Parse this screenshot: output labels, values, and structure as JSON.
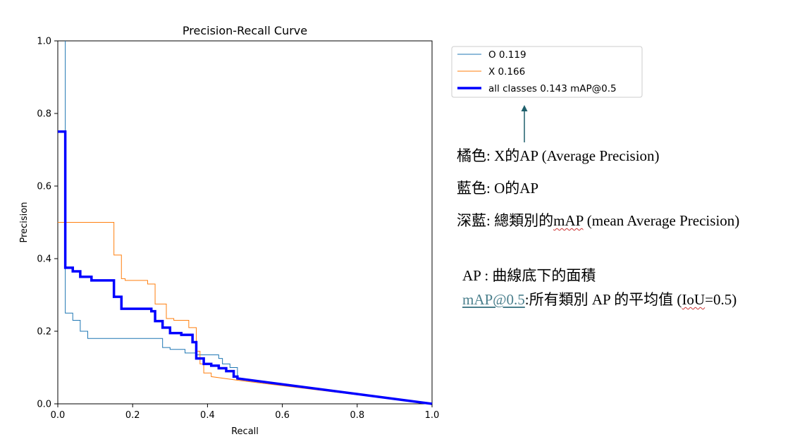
{
  "chart_data": {
    "type": "line",
    "title": "Precision-Recall Curve",
    "xlabel": "Recall",
    "ylabel": "Precision",
    "xlim": [
      0,
      1
    ],
    "ylim": [
      0,
      1
    ],
    "xticks": [
      "0.0",
      "0.2",
      "0.4",
      "0.6",
      "0.8",
      "1.0"
    ],
    "yticks": [
      "0.0",
      "0.2",
      "0.4",
      "0.6",
      "0.8",
      "1.0"
    ],
    "grid": false,
    "legend_position": "outside-right",
    "series": [
      {
        "name": "O 0.119",
        "color": "#1f77b4",
        "width": 1,
        "points": [
          [
            0.02,
            1.0
          ],
          [
            0.02,
            0.25
          ],
          [
            0.04,
            0.25
          ],
          [
            0.04,
            0.23
          ],
          [
            0.06,
            0.23
          ],
          [
            0.06,
            0.2
          ],
          [
            0.08,
            0.2
          ],
          [
            0.08,
            0.18
          ],
          [
            0.28,
            0.18
          ],
          [
            0.28,
            0.155
          ],
          [
            0.3,
            0.155
          ],
          [
            0.3,
            0.15
          ],
          [
            0.34,
            0.15
          ],
          [
            0.34,
            0.14
          ],
          [
            0.37,
            0.14
          ],
          [
            0.37,
            0.135
          ],
          [
            0.43,
            0.135
          ],
          [
            0.43,
            0.125
          ],
          [
            0.44,
            0.125
          ],
          [
            0.44,
            0.11
          ],
          [
            0.46,
            0.11
          ],
          [
            0.46,
            0.1
          ],
          [
            0.48,
            0.1
          ],
          [
            0.48,
            0.07
          ],
          [
            1.0,
            0.0
          ]
        ]
      },
      {
        "name": "X 0.166",
        "color": "#ff7f0e",
        "width": 1,
        "points": [
          [
            0.0,
            0.5
          ],
          [
            0.15,
            0.5
          ],
          [
            0.15,
            0.41
          ],
          [
            0.17,
            0.41
          ],
          [
            0.17,
            0.345
          ],
          [
            0.18,
            0.345
          ],
          [
            0.18,
            0.34
          ],
          [
            0.24,
            0.34
          ],
          [
            0.24,
            0.33
          ],
          [
            0.26,
            0.33
          ],
          [
            0.26,
            0.275
          ],
          [
            0.29,
            0.275
          ],
          [
            0.29,
            0.235
          ],
          [
            0.31,
            0.235
          ],
          [
            0.31,
            0.23
          ],
          [
            0.35,
            0.23
          ],
          [
            0.35,
            0.21
          ],
          [
            0.37,
            0.21
          ],
          [
            0.37,
            0.145
          ],
          [
            0.38,
            0.145
          ],
          [
            0.38,
            0.11
          ],
          [
            0.39,
            0.11
          ],
          [
            0.39,
            0.085
          ],
          [
            0.41,
            0.085
          ],
          [
            0.41,
            0.075
          ],
          [
            0.48,
            0.065
          ],
          [
            1.0,
            0.0
          ]
        ]
      },
      {
        "name": "all classes 0.143 mAP@0.5",
        "color": "#0000ff",
        "width": 3.5,
        "points": [
          [
            0.0,
            0.75
          ],
          [
            0.02,
            0.75
          ],
          [
            0.02,
            0.375
          ],
          [
            0.04,
            0.375
          ],
          [
            0.04,
            0.365
          ],
          [
            0.06,
            0.365
          ],
          [
            0.06,
            0.35
          ],
          [
            0.09,
            0.35
          ],
          [
            0.09,
            0.34
          ],
          [
            0.15,
            0.34
          ],
          [
            0.15,
            0.295
          ],
          [
            0.17,
            0.295
          ],
          [
            0.17,
            0.262
          ],
          [
            0.25,
            0.262
          ],
          [
            0.25,
            0.255
          ],
          [
            0.26,
            0.255
          ],
          [
            0.26,
            0.228
          ],
          [
            0.28,
            0.228
          ],
          [
            0.28,
            0.21
          ],
          [
            0.3,
            0.21
          ],
          [
            0.3,
            0.195
          ],
          [
            0.33,
            0.195
          ],
          [
            0.33,
            0.19
          ],
          [
            0.36,
            0.19
          ],
          [
            0.36,
            0.17
          ],
          [
            0.37,
            0.17
          ],
          [
            0.37,
            0.125
          ],
          [
            0.39,
            0.125
          ],
          [
            0.39,
            0.11
          ],
          [
            0.41,
            0.11
          ],
          [
            0.41,
            0.105
          ],
          [
            0.43,
            0.105
          ],
          [
            0.43,
            0.098
          ],
          [
            0.45,
            0.098
          ],
          [
            0.45,
            0.09
          ],
          [
            0.47,
            0.09
          ],
          [
            0.47,
            0.075
          ],
          [
            0.48,
            0.075
          ],
          [
            0.48,
            0.07
          ],
          [
            1.0,
            0.0
          ]
        ]
      }
    ]
  },
  "annotations": {
    "legend_lines": [
      {
        "label": "橘色: ",
        "text": "X的AP (Average Precision)"
      },
      {
        "label": "藍色: ",
        "text": "O的AP"
      },
      {
        "label": "深藍: ",
        "pre": "總類別的",
        "term": "mAP",
        "text": " (mean Average Precision)"
      }
    ],
    "definitions": [
      {
        "term": "AP",
        "text": " : 曲線底下的面積"
      },
      {
        "term": "mAP@0.5",
        "mid": ":所有類別 AP 的平均值 (",
        "inner": "IoU",
        "post": "=0.5)"
      }
    ],
    "arrow_color": "#1f5f6b"
  }
}
